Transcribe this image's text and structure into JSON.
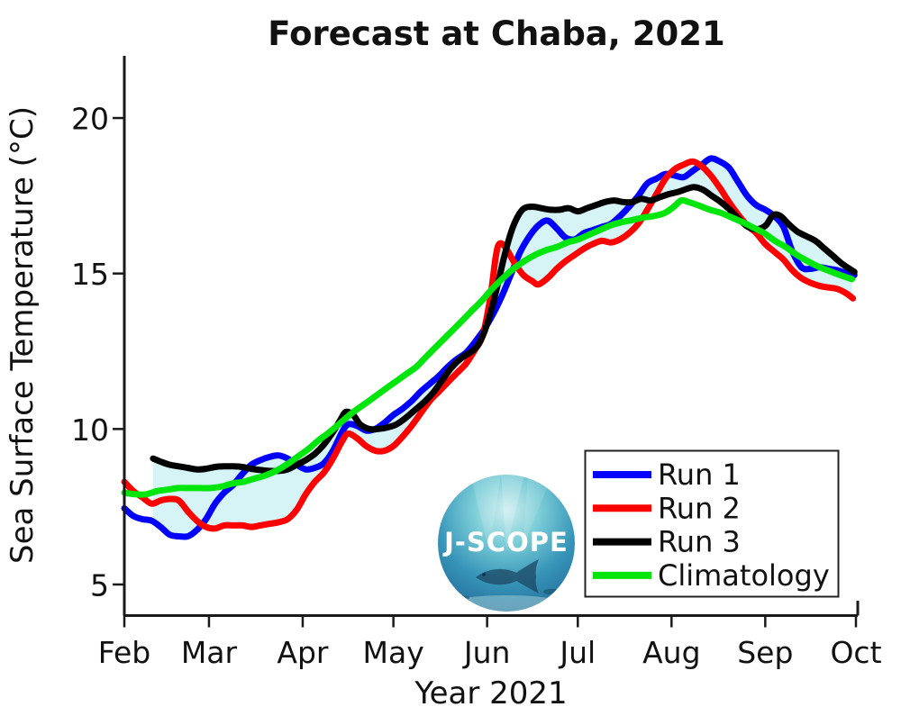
{
  "title": "Forecast at Chaba, 2021",
  "xlabel": "Year 2021",
  "ylabel": "Sea Surface Temperature (°C)",
  "logo": {
    "text": "J-SCOPE"
  },
  "legend": {
    "position": "lower right",
    "items": [
      {
        "label": "Run 1",
        "color": "#0000ff"
      },
      {
        "label": "Run 2",
        "color": "#ff0000"
      },
      {
        "label": "Run 3",
        "color": "#000000"
      },
      {
        "label": "Climatology",
        "color": "#00e60c"
      }
    ]
  },
  "chart_data": {
    "type": "line",
    "title": "Forecast at Chaba, 2021",
    "xlabel": "Year 2021",
    "ylabel": "Sea Surface Temperature (°C)",
    "x_unit": "days since Feb 1, 2021",
    "xlim": [
      0,
      242.6
    ],
    "ylim": [
      4,
      22
    ],
    "grid": false,
    "y_ticks": [
      20,
      15,
      10,
      5
    ],
    "x_ticks": [
      {
        "label": "Feb",
        "day": 0
      },
      {
        "label": "Mar",
        "day": 28
      },
      {
        "label": "Apr",
        "day": 59
      },
      {
        "label": "May",
        "day": 89
      },
      {
        "label": "Jun",
        "day": 120
      },
      {
        "label": "Jul",
        "day": 150
      },
      {
        "label": "Aug",
        "day": 181
      },
      {
        "label": "Sep",
        "day": 212
      },
      {
        "label": "Oct",
        "day": 242
      }
    ],
    "band": {
      "name": "ensemble spread (min-max of runs)",
      "color": "#d6f3f6",
      "start_day": 9.5,
      "end_day": 241
    },
    "series": [
      {
        "name": "Run 1",
        "color": "#0000ff",
        "width": 7,
        "days": [
          0,
          3,
          6,
          9,
          12,
          15,
          18,
          21,
          24,
          27,
          30,
          33,
          36,
          39,
          42,
          45,
          48,
          51,
          54,
          57,
          60,
          63,
          66,
          69,
          72,
          74,
          77,
          80,
          83,
          86,
          89,
          92,
          95,
          98,
          101,
          104,
          107,
          110,
          113,
          116,
          119,
          122,
          125,
          128,
          131,
          134,
          137,
          140,
          143,
          146,
          149,
          152,
          155,
          158,
          161,
          164,
          167,
          170,
          173,
          176,
          179,
          182,
          185,
          188,
          191,
          194,
          197,
          200,
          203,
          206,
          209,
          212,
          215,
          218,
          221,
          224,
          227,
          230,
          233,
          236,
          239,
          241.5
        ],
        "values": [
          7.45,
          7.2,
          7.1,
          7.05,
          6.85,
          6.6,
          6.55,
          6.55,
          6.75,
          7.1,
          7.6,
          7.95,
          8.2,
          8.55,
          8.85,
          9.0,
          9.1,
          9.15,
          9.05,
          8.85,
          8.7,
          8.75,
          8.9,
          9.3,
          9.9,
          10.15,
          10.1,
          9.95,
          10.0,
          10.2,
          10.45,
          10.65,
          10.9,
          11.2,
          11.45,
          11.7,
          12.0,
          12.25,
          12.45,
          12.8,
          13.2,
          13.7,
          14.3,
          15.0,
          15.7,
          16.2,
          16.55,
          16.7,
          16.45,
          16.15,
          16.1,
          16.3,
          16.4,
          16.5,
          16.6,
          16.85,
          17.15,
          17.5,
          17.9,
          18.05,
          18.2,
          18.15,
          18.1,
          18.3,
          18.5,
          18.7,
          18.6,
          18.4,
          17.95,
          17.5,
          17.2,
          17.05,
          16.85,
          16.5,
          15.7,
          15.2,
          15.15,
          15.2,
          15.15,
          15.1,
          15.0,
          14.95
        ]
      },
      {
        "name": "Run 2",
        "color": "#ff0000",
        "width": 7,
        "days": [
          0,
          3,
          6,
          9,
          12,
          15,
          18,
          21,
          24,
          27,
          30,
          33,
          36,
          39,
          42,
          45,
          48,
          51,
          54,
          57,
          60,
          63,
          66,
          69,
          72,
          74,
          77,
          80,
          83,
          86,
          89,
          92,
          95,
          98,
          101,
          104,
          107,
          110,
          113,
          116,
          118.5,
          121,
          122.8,
          124,
          126,
          129,
          132,
          135,
          137,
          140,
          143,
          146,
          149,
          152,
          155,
          158,
          161,
          164,
          167,
          170,
          173,
          176,
          179,
          182,
          185,
          188,
          191,
          194,
          197,
          200,
          203,
          206,
          209,
          212,
          215,
          218,
          221,
          224,
          227,
          230,
          233,
          236,
          239,
          241
        ],
        "values": [
          8.3,
          8.0,
          7.8,
          7.6,
          7.7,
          7.75,
          7.7,
          7.35,
          7.05,
          6.85,
          6.8,
          6.9,
          6.9,
          6.9,
          6.85,
          6.9,
          6.95,
          7.0,
          7.1,
          7.4,
          7.9,
          8.3,
          8.6,
          9.05,
          9.6,
          9.85,
          9.7,
          9.45,
          9.3,
          9.3,
          9.45,
          9.75,
          10.1,
          10.5,
          10.9,
          11.2,
          11.5,
          11.8,
          12.1,
          12.55,
          13.0,
          14.2,
          15.5,
          15.95,
          15.85,
          15.35,
          14.95,
          14.75,
          14.65,
          14.85,
          15.15,
          15.4,
          15.6,
          15.8,
          15.95,
          16.05,
          16.0,
          16.1,
          16.3,
          16.6,
          17.05,
          17.55,
          18.05,
          18.35,
          18.5,
          18.6,
          18.45,
          18.15,
          17.75,
          17.3,
          16.9,
          16.55,
          16.3,
          15.95,
          15.7,
          15.45,
          15.1,
          14.85,
          14.7,
          14.6,
          14.55,
          14.5,
          14.35,
          14.2
        ]
      },
      {
        "name": "Run 3",
        "color": "#000000",
        "width": 7,
        "days": [
          9.5,
          12,
          15,
          18,
          21,
          24,
          27,
          30,
          33,
          36,
          39,
          42,
          45,
          48,
          51,
          54,
          57,
          60,
          63,
          66,
          69,
          71.5,
          73.3,
          75.7,
          78,
          81,
          84,
          87,
          90,
          93,
          96,
          99,
          102,
          105,
          108,
          110.5,
          112.5,
          115,
          117,
          119,
          121.3,
          123.4,
          125.8,
          128,
          130.2,
          132.3,
          135,
          138,
          141,
          144,
          147,
          150,
          153,
          156,
          159,
          162,
          165,
          168,
          171,
          174,
          177,
          180,
          183,
          186,
          188.4,
          191.3,
          194.3,
          197.3,
          200.3,
          203.3,
          206.3,
          209.2,
          212.2,
          214.6,
          217,
          219.6,
          222.6,
          225.6,
          228.6,
          231.6,
          234.6,
          237.6,
          241.5
        ],
        "values": [
          9.05,
          8.95,
          8.85,
          8.8,
          8.75,
          8.7,
          8.72,
          8.78,
          8.8,
          8.8,
          8.78,
          8.72,
          8.68,
          8.65,
          8.65,
          8.7,
          8.85,
          9.0,
          9.2,
          9.5,
          9.9,
          10.3,
          10.55,
          10.45,
          10.15,
          10.0,
          10.0,
          10.05,
          10.15,
          10.35,
          10.6,
          10.85,
          11.15,
          11.55,
          11.95,
          12.2,
          12.35,
          12.5,
          12.7,
          13.1,
          13.8,
          14.6,
          15.6,
          16.35,
          16.85,
          17.1,
          17.15,
          17.1,
          17.05,
          17.05,
          17.1,
          17.0,
          17.1,
          17.2,
          17.3,
          17.35,
          17.3,
          17.3,
          17.4,
          17.35,
          17.45,
          17.55,
          17.62,
          17.72,
          17.78,
          17.7,
          17.5,
          17.3,
          17.05,
          16.75,
          16.5,
          16.42,
          16.55,
          16.88,
          16.85,
          16.6,
          16.35,
          16.2,
          16.05,
          15.8,
          15.55,
          15.3,
          15.05
        ]
      },
      {
        "name": "Climatology",
        "color": "#00e60c",
        "width": 7,
        "days": [
          0,
          3.6,
          7.2,
          10.7,
          14.3,
          17.9,
          21.5,
          25,
          28.6,
          32.2,
          35.8,
          39.3,
          42.9,
          46.5,
          50.1,
          53.6,
          57.2,
          60.8,
          64.4,
          67.9,
          71.5,
          75.1,
          78.7,
          82.3,
          85.8,
          89.4,
          93,
          96.6,
          100.1,
          103.7,
          107.3,
          110.9,
          114.4,
          118,
          121.6,
          125.2,
          128.7,
          132.3,
          135.9,
          139.5,
          143,
          146.6,
          150.2,
          153.8,
          157.3,
          160.9,
          164.5,
          168.1,
          171.7,
          175.2,
          178.8,
          181.8,
          184.2,
          186.6,
          190.2,
          193.7,
          197.3,
          200.9,
          204.5,
          208,
          211.6,
          215.2,
          218.8,
          222.4,
          226,
          229.6,
          233.2,
          236.8,
          240.7
        ],
        "values": [
          7.95,
          7.9,
          7.9,
          8.0,
          8.05,
          8.1,
          8.1,
          8.1,
          8.1,
          8.15,
          8.25,
          8.3,
          8.4,
          8.5,
          8.65,
          8.85,
          9.1,
          9.35,
          9.65,
          9.9,
          10.2,
          10.5,
          10.75,
          11.0,
          11.25,
          11.5,
          11.75,
          12.0,
          12.35,
          12.7,
          13.05,
          13.4,
          13.75,
          14.1,
          14.5,
          14.85,
          15.15,
          15.4,
          15.6,
          15.75,
          15.85,
          16.0,
          16.1,
          16.25,
          16.4,
          16.55,
          16.65,
          16.72,
          16.8,
          16.85,
          16.95,
          17.15,
          17.35,
          17.3,
          17.18,
          17.05,
          16.95,
          16.8,
          16.65,
          16.48,
          16.3,
          16.05,
          15.85,
          15.6,
          15.4,
          15.22,
          15.08,
          14.95,
          14.82
        ]
      }
    ]
  }
}
